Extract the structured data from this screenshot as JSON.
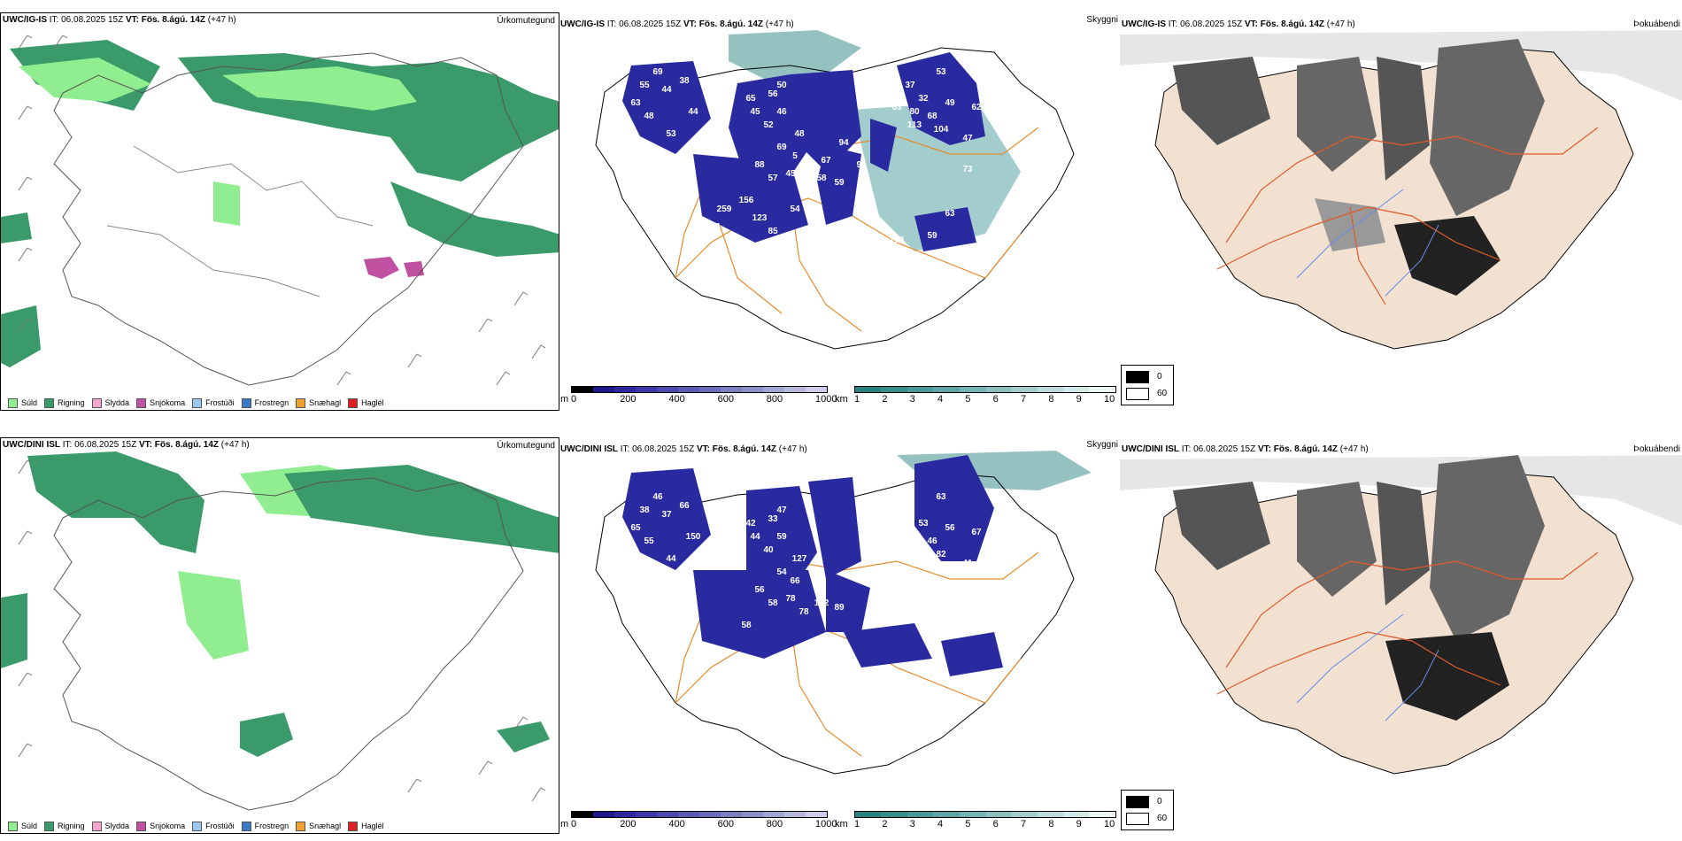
{
  "rows": [
    {
      "model": "UWC/IG-IS",
      "issue_prefix": "IT:",
      "issue_time": "06.08.2025 15Z",
      "valid_prefix": "VT:",
      "valid_time": "Fös. 8.ágú. 14Z",
      "lead": "(+47 h)",
      "ceiling_labels": [
        "69",
        "55",
        "44",
        "38",
        "63",
        "48",
        "44",
        "75",
        "53",
        "65",
        "56",
        "45",
        "52",
        "46",
        "50",
        "44",
        "37",
        "53",
        "32",
        "49",
        "62",
        "63",
        "80",
        "68",
        "113",
        "104",
        "47",
        "48",
        "5",
        "69",
        "88",
        "57",
        "45",
        "47",
        "58",
        "59",
        "156",
        "259",
        "123",
        "54",
        "85",
        "46",
        "42",
        "108",
        "59",
        "63",
        "67",
        "94",
        "90",
        "73"
      ]
    },
    {
      "model": "UWC/DINI ISL",
      "issue_prefix": "IT:",
      "issue_time": "06.08.2025 15Z",
      "valid_prefix": "VT:",
      "valid_time": "Fös. 8.ágú. 14Z",
      "lead": "(+47 h)",
      "ceiling_labels": [
        "46",
        "38",
        "37",
        "66",
        "65",
        "55",
        "150",
        "53",
        "44",
        "42",
        "33",
        "44",
        "40",
        "59",
        "47",
        "42",
        "57",
        "63",
        "53",
        "56",
        "67",
        "114",
        "141",
        "46",
        "49",
        "82",
        "41",
        "127",
        "66",
        "54",
        "56",
        "58",
        "78",
        "78",
        "132",
        "89",
        "58"
      ]
    }
  ],
  "panel_titles": {
    "precip_type": "Úrkomutegund",
    "visibility": "Skyggni",
    "fog": "Þokuábendi"
  },
  "precip_legend": [
    {
      "label": "Súld",
      "color": "#90ee90"
    },
    {
      "label": "Rigning",
      "color": "#3a9a6a"
    },
    {
      "label": "Slydda",
      "color": "#f4a6d0"
    },
    {
      "label": "Snjókoma",
      "color": "#c050a0"
    },
    {
      "label": "Frostúði",
      "color": "#9ac8f0"
    },
    {
      "label": "Frostregn",
      "color": "#3a78c8"
    },
    {
      "label": "Snæhagl",
      "color": "#f0a030"
    },
    {
      "label": "Haglél",
      "color": "#e02020"
    }
  ],
  "ceiling_bar": {
    "unit": "m",
    "ticks": [
      "0",
      "200",
      "400",
      "600",
      "800",
      "1000"
    ],
    "colors": [
      "#000000",
      "#1a1a8a",
      "#2a2a9e",
      "#3838a8",
      "#4a4aae",
      "#5a5ab4",
      "#6c6cba",
      "#7e7ec2",
      "#9090c8",
      "#a4a4d0",
      "#b8b8da",
      "#ccccea"
    ]
  },
  "visibility_bar": {
    "unit": "km",
    "ticks": [
      "1",
      "2",
      "3",
      "4",
      "5",
      "6",
      "7",
      "8",
      "9",
      "10"
    ],
    "colors": [
      "#2a8080",
      "#3a8c8c",
      "#4c9898",
      "#60a4a4",
      "#76b2b2",
      "#8cc0c0",
      "#a4cccc",
      "#bcdada",
      "#d4e8e8",
      "#eef6f6"
    ]
  },
  "fog_legend": {
    "max": "0",
    "min": "60"
  }
}
